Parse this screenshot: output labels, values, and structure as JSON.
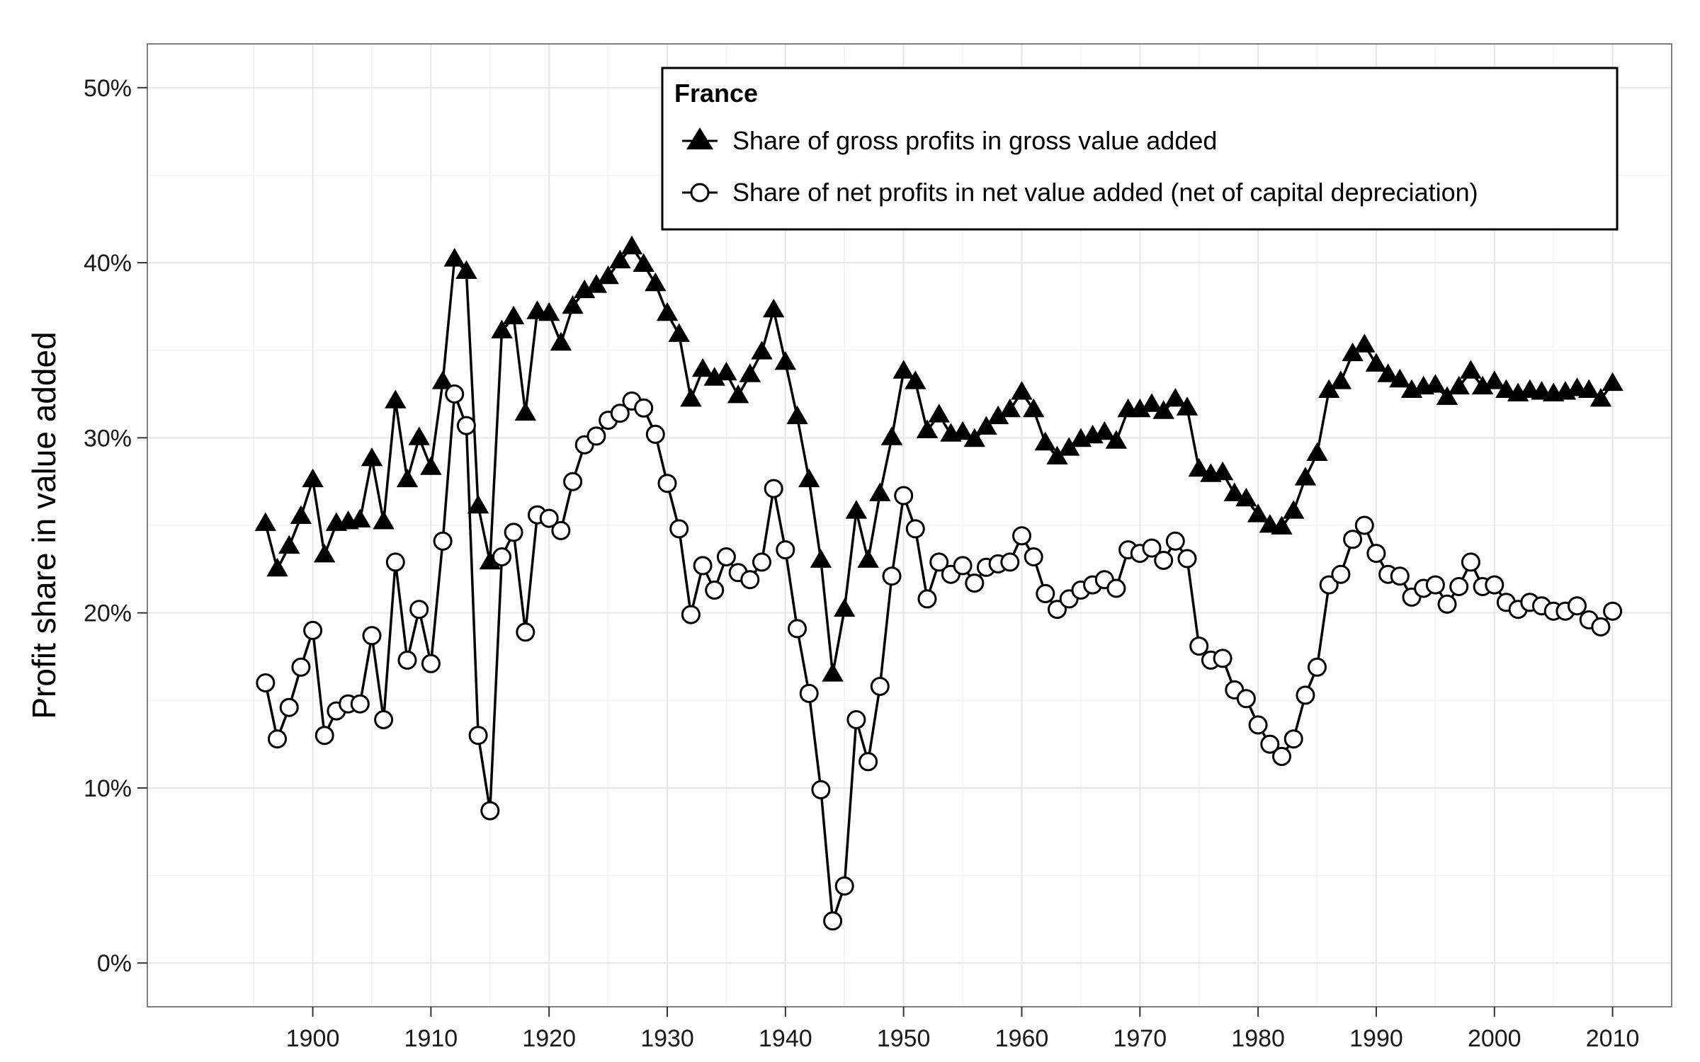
{
  "chart_data": {
    "type": "line",
    "title": "",
    "xlabel": "",
    "ylabel": "Profit share in value added",
    "xlim": [
      1886,
      2015
    ],
    "ylim": [
      -2.5,
      52.5
    ],
    "x_ticks": [
      1900,
      1910,
      1920,
      1930,
      1940,
      1950,
      1960,
      1970,
      1980,
      1990,
      2000,
      2010
    ],
    "y_ticks": [
      0,
      10,
      20,
      30,
      40,
      50
    ],
    "y_tick_labels": [
      "0%",
      "10%",
      "20%",
      "30%",
      "40%",
      "50%"
    ],
    "grid": true,
    "legend_position": "top-right",
    "legend": {
      "title": "France"
    },
    "x": [
      1896,
      1897,
      1898,
      1899,
      1900,
      1901,
      1902,
      1903,
      1904,
      1905,
      1906,
      1907,
      1908,
      1909,
      1910,
      1911,
      1912,
      1913,
      1914,
      1915,
      1916,
      1917,
      1918,
      1919,
      1920,
      1921,
      1922,
      1923,
      1924,
      1925,
      1926,
      1927,
      1928,
      1929,
      1930,
      1931,
      1932,
      1933,
      1934,
      1935,
      1936,
      1937,
      1938,
      1939,
      1940,
      1941,
      1942,
      1943,
      1944,
      1945,
      1946,
      1947,
      1948,
      1949,
      1950,
      1951,
      1952,
      1953,
      1954,
      1955,
      1956,
      1957,
      1958,
      1959,
      1960,
      1961,
      1962,
      1963,
      1964,
      1965,
      1966,
      1967,
      1968,
      1969,
      1970,
      1971,
      1972,
      1973,
      1974,
      1975,
      1976,
      1977,
      1978,
      1979,
      1980,
      1981,
      1982,
      1983,
      1984,
      1985,
      1986,
      1987,
      1988,
      1989,
      1990,
      1991,
      1992,
      1993,
      1994,
      1995,
      1996,
      1997,
      1998,
      1999,
      2000,
      2001,
      2002,
      2003,
      2004,
      2005,
      2006,
      2007,
      2008,
      2009,
      2010
    ],
    "series": [
      {
        "name": "Share of gross profits in gross value added",
        "marker": "filled-triangle",
        "values": [
          25.1,
          22.5,
          23.8,
          25.5,
          27.6,
          23.3,
          25.1,
          25.2,
          25.3,
          28.8,
          25.2,
          32.1,
          27.6,
          30.0,
          28.3,
          33.2,
          40.2,
          39.5,
          26.1,
          22.9,
          36.1,
          36.9,
          31.4,
          37.2,
          37.1,
          35.4,
          37.5,
          38.4,
          38.7,
          39.2,
          40.1,
          40.9,
          39.9,
          38.8,
          37.1,
          35.9,
          32.2,
          33.9,
          33.4,
          33.7,
          32.4,
          33.6,
          34.9,
          37.3,
          34.3,
          31.2,
          27.6,
          23.0,
          16.5,
          20.2,
          25.8,
          23.0,
          26.8,
          30.0,
          33.8,
          33.2,
          30.4,
          31.3,
          30.2,
          30.3,
          29.9,
          30.6,
          31.2,
          31.6,
          32.6,
          31.6,
          29.7,
          28.9,
          29.4,
          29.9,
          30.1,
          30.3,
          29.8,
          31.6,
          31.6,
          31.9,
          31.5,
          32.2,
          31.7,
          28.2,
          27.9,
          28.0,
          26.8,
          26.5,
          25.6,
          25.0,
          24.9,
          25.8,
          27.7,
          29.1,
          32.7,
          33.2,
          34.8,
          35.3,
          34.2,
          33.6,
          33.3,
          32.7,
          32.9,
          33.0,
          32.3,
          32.9,
          33.8,
          32.9,
          33.2,
          32.7,
          32.5,
          32.7,
          32.6,
          32.5,
          32.6,
          32.8,
          32.7,
          32.2,
          33.1
        ]
      },
      {
        "name": "Share of net profits in net value added (net of capital depreciation)",
        "marker": "open-circle",
        "values": [
          16.0,
          12.8,
          14.6,
          16.9,
          19.0,
          13.0,
          14.4,
          14.8,
          14.8,
          18.7,
          13.9,
          22.9,
          17.3,
          20.2,
          17.1,
          24.1,
          32.5,
          30.7,
          13.0,
          8.7,
          23.2,
          24.6,
          18.9,
          25.6,
          25.4,
          24.7,
          27.5,
          29.6,
          30.1,
          31.0,
          31.4,
          32.1,
          31.7,
          30.2,
          27.4,
          24.8,
          19.9,
          22.7,
          21.3,
          23.2,
          22.3,
          21.9,
          22.9,
          27.1,
          23.6,
          19.1,
          15.4,
          9.9,
          2.4,
          4.4,
          13.9,
          11.5,
          15.8,
          22.1,
          26.7,
          24.8,
          20.8,
          22.9,
          22.2,
          22.7,
          21.7,
          22.6,
          22.8,
          22.9,
          24.4,
          23.2,
          21.1,
          20.2,
          20.8,
          21.3,
          21.6,
          21.9,
          21.4,
          23.6,
          23.4,
          23.7,
          23.0,
          24.1,
          23.1,
          18.1,
          17.3,
          17.4,
          15.6,
          15.1,
          13.6,
          12.5,
          11.8,
          12.8,
          15.3,
          16.9,
          21.6,
          22.2,
          24.2,
          25.0,
          23.4,
          22.2,
          22.1,
          20.9,
          21.4,
          21.6,
          20.5,
          21.5,
          22.9,
          21.5,
          21.6,
          20.6,
          20.2,
          20.6,
          20.4,
          20.1,
          20.1,
          20.4,
          19.6,
          19.2,
          20.1
        ]
      }
    ]
  },
  "colors": {
    "line": "#000000",
    "grid_major": "#e6e6e6",
    "grid_minor": "#f2f2f2",
    "panel_border": "#7f7f7f",
    "background": "#ffffff"
  }
}
